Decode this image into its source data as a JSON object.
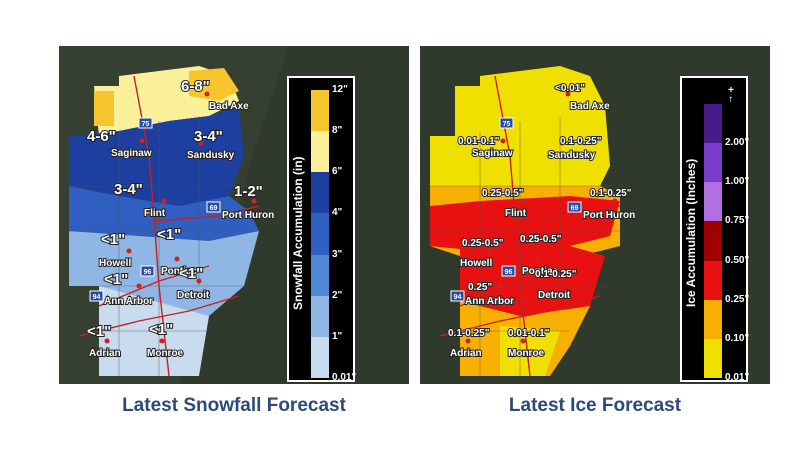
{
  "snow": {
    "caption": "Latest Snowfall Forecast",
    "legend_title": "Snowfall Accumulation (in)",
    "legend_ticks": [
      "12\"",
      "8\"",
      "6\"",
      "4\"",
      "3\"",
      "2\"",
      "1\"",
      "0.01\""
    ],
    "legend_colors": [
      "#f7c52e",
      "#fbf09a",
      "#1d3fa0",
      "#2f5fc0",
      "#4f86d6",
      "#8fb6e4",
      "#c8dbef"
    ],
    "amounts": [
      "6-8\"",
      "4-6\"",
      "3-4\"",
      "3-4\"",
      "1-2\"",
      "<1\"",
      "<1\"",
      "<1\"",
      "<1\"",
      "<1\"",
      "<1\""
    ]
  },
  "ice": {
    "caption": "Latest Ice Forecast",
    "legend_title": "Ice Accumulation (Inches)",
    "legend_ticks": [
      "2.00\"",
      "1.00\"",
      "0.75\"",
      "0.50\"",
      "0.25\"",
      "0.10\"",
      "0.01\""
    ],
    "legend_top_symbol": "+ ↑",
    "legend_colors": [
      "#4a1a8a",
      "#7c3ccc",
      "#b070e0",
      "#a00000",
      "#e81010",
      "#f8b000",
      "#f0e000"
    ],
    "amounts": [
      "<0.01\"",
      "0.01-0.1\"",
      "0.1-0.25\"",
      "0.25-0.5\"",
      "0.1-0.25\"",
      "0.25-0.5\"",
      "0.25-0.5\"",
      "0.25\"",
      "0.1-0.25\"",
      "0.1-0.25\"",
      "0.01-0.1\""
    ]
  },
  "cities": [
    "Bad Axe",
    "Saginaw",
    "Sandusky",
    "Flint",
    "Port Huron",
    "Howell",
    "Pontiac",
    "Ann Arbor",
    "Detroit",
    "Adrian",
    "Monroe"
  ],
  "highways": [
    "75",
    "69",
    "96",
    "94"
  ]
}
